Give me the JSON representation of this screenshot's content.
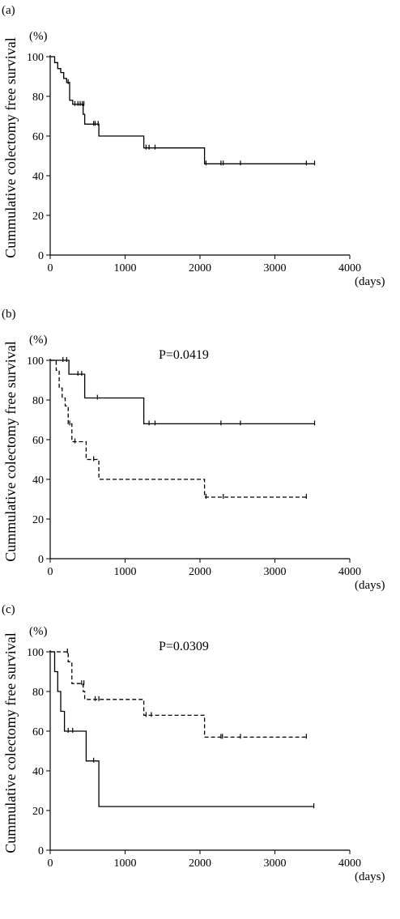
{
  "chart_data": [
    {
      "type": "line",
      "step": true,
      "panel_label": "(a)",
      "ylabel": "Cummulative colectomy free survival",
      "y_unit": "(%)",
      "x_unit": "(days)",
      "xlim": [
        0,
        4000
      ],
      "ylim": [
        0,
        100
      ],
      "x_ticks": [
        "0",
        "1000",
        "2000",
        "3000",
        "4000"
      ],
      "y_ticks": [
        "0",
        "20",
        "40",
        "60",
        "80",
        "100"
      ],
      "grid": false,
      "p_value": "",
      "series": [
        {
          "style": "solid",
          "x": [
            0,
            60,
            60,
            100,
            100,
            140,
            140,
            180,
            180,
            220,
            220,
            260,
            260,
            300,
            300,
            440,
            440,
            460,
            460,
            650,
            650,
            1250,
            1250,
            2060,
            2060,
            3530
          ],
          "y": [
            100,
            100,
            97,
            97,
            94,
            94,
            92,
            92,
            89,
            89,
            87,
            87,
            78,
            78,
            76,
            76,
            71,
            71,
            66,
            66,
            60,
            60,
            54,
            54,
            46,
            46
          ],
          "censor_x": [
            240,
            330,
            370,
            400,
            430,
            450,
            580,
            600,
            640,
            1280,
            1320,
            1400,
            2080,
            2280,
            2310,
            2540,
            3420,
            3530
          ],
          "censor_y": [
            87,
            76,
            76,
            76,
            76,
            76,
            66,
            66,
            66,
            54,
            54,
            54,
            46,
            46,
            46,
            46,
            46,
            46
          ]
        }
      ]
    },
    {
      "type": "line",
      "step": true,
      "panel_label": "(b)",
      "ylabel": "Cummulative colectomy free survival",
      "y_unit": "(%)",
      "x_unit": "(days)",
      "xlim": [
        0,
        4000
      ],
      "ylim": [
        0,
        100
      ],
      "x_ticks": [
        "0",
        "1000",
        "2000",
        "3000",
        "4000"
      ],
      "y_ticks": [
        "0",
        "20",
        "40",
        "60",
        "80",
        "100"
      ],
      "grid": false,
      "p_value": "P=0.0419",
      "series": [
        {
          "style": "solid",
          "x": [
            0,
            250,
            250,
            460,
            460,
            1250,
            1250,
            3530
          ],
          "y": [
            100,
            100,
            93,
            93,
            81,
            81,
            68,
            68
          ],
          "censor_x": [
            170,
            220,
            370,
            420,
            630,
            1320,
            1400,
            2280,
            2540,
            3530
          ],
          "censor_y": [
            100,
            100,
            93,
            93,
            81,
            68,
            68,
            68,
            68,
            68
          ]
        },
        {
          "style": "dashed",
          "x": [
            0,
            80,
            80,
            120,
            120,
            160,
            160,
            200,
            200,
            240,
            240,
            290,
            290,
            480,
            480,
            650,
            650,
            2060,
            2060,
            3420
          ],
          "y": [
            100,
            100,
            95,
            95,
            86,
            86,
            81,
            81,
            77,
            77,
            68,
            68,
            59,
            59,
            50,
            50,
            40,
            40,
            31,
            31
          ],
          "censor_x": [
            260,
            330,
            580,
            2080,
            2310,
            3420
          ],
          "censor_y": [
            68,
            59,
            50,
            31,
            31,
            31
          ]
        }
      ]
    },
    {
      "type": "line",
      "step": true,
      "panel_label": "(c)",
      "ylabel": "Cummulative colectomy free survival",
      "y_unit": "(%)",
      "x_unit": "(days)",
      "xlim": [
        0,
        4000
      ],
      "ylim": [
        0,
        100
      ],
      "x_ticks": [
        "0",
        "1000",
        "2000",
        "3000",
        "4000"
      ],
      "y_ticks": [
        "0",
        "20",
        "40",
        "60",
        "80",
        "100"
      ],
      "grid": false,
      "p_value": "P=0.0309",
      "series": [
        {
          "style": "solid",
          "x": [
            0,
            60,
            60,
            100,
            100,
            140,
            140,
            190,
            190,
            480,
            480,
            650,
            650,
            3520
          ],
          "y": [
            100,
            100,
            90,
            90,
            80,
            80,
            70,
            70,
            60,
            60,
            45,
            45,
            22,
            22
          ],
          "censor_x": [
            240,
            300,
            580,
            3520
          ],
          "censor_y": [
            60,
            60,
            45,
            22
          ]
        },
        {
          "style": "dashed",
          "x": [
            0,
            240,
            240,
            290,
            290,
            440,
            440,
            460,
            460,
            1250,
            1250,
            2060,
            2060,
            3420
          ],
          "y": [
            100,
            100,
            95,
            95,
            84,
            84,
            80,
            80,
            76,
            76,
            68,
            68,
            57,
            57
          ],
          "censor_x": [
            230,
            420,
            450,
            600,
            650,
            1280,
            1350,
            2280,
            2300,
            2540,
            3420
          ],
          "censor_y": [
            100,
            84,
            84,
            76,
            76,
            68,
            68,
            57,
            57,
            57,
            57
          ]
        }
      ]
    }
  ]
}
